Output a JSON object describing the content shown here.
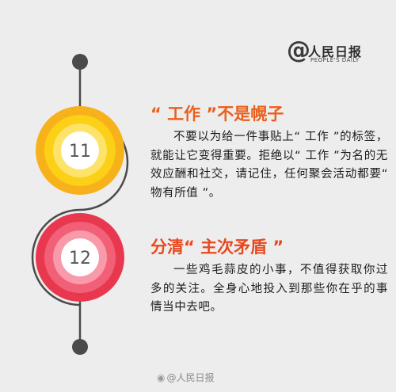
{
  "logo": {
    "at_symbol": "@",
    "title": "人民日报",
    "subtitle": "PEOPLE'S DAILY"
  },
  "items": [
    {
      "number": "11",
      "heading": "“ 工作 ”不是幌子",
      "body": "不要以为给一件事贴上“ 工作 ”的标签，就能让它变得重要。拒绝以“ 工作 ”为名的无效应酬和社交，请记住，任何聚会活动都要“ 物有所值 ”。"
    },
    {
      "number": "12",
      "heading": "分清“ 主次矛盾 ”",
      "body": "一些鸡毛蒜皮的小事，不值得获取你过多的关注。全身心地投入到那些你在乎的事情当中去吧。"
    }
  ],
  "watermark": {
    "icon": "weibo-icon",
    "text": "@人民日报"
  },
  "colors": {
    "background": "#ededed",
    "line": "#4a4a4a",
    "accent_orange": "#ea5f1b",
    "ring_yellow": [
      "#f7b21b",
      "#fbd017",
      "#fde36a",
      "#ffffff"
    ],
    "ring_red": [
      "#e8384f",
      "#f26077",
      "#f99aab",
      "#ffffff"
    ]
  }
}
